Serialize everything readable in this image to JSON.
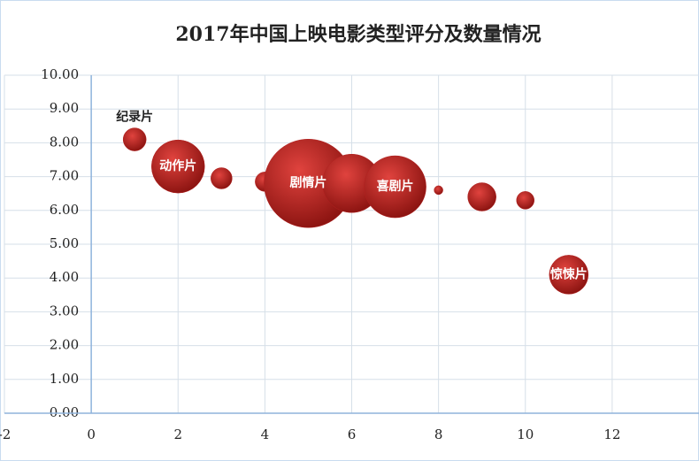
{
  "chart_data": {
    "type": "bubble",
    "title": "2017年中国上映电影类型评分及数量情况",
    "x": [
      1,
      2,
      3,
      4,
      5,
      6,
      7,
      8,
      9,
      10,
      11
    ],
    "y": [
      8.1,
      7.3,
      6.95,
      6.85,
      6.8,
      6.8,
      6.7,
      6.6,
      6.4,
      6.3,
      4.1
    ],
    "sizes": [
      169,
      900,
      144,
      121,
      2500,
      1089,
      1225,
      25,
      256,
      100,
      484
    ],
    "labels": [
      "纪录片",
      "动作片",
      null,
      null,
      "剧情片",
      null,
      "喜剧片",
      null,
      null,
      null,
      "惊悚片"
    ],
    "color": "#b3201f",
    "xlim": [
      -2,
      14
    ],
    "xticks": [
      -2,
      0,
      2,
      4,
      6,
      8,
      10,
      12
    ],
    "ylim": [
      0,
      10
    ],
    "yticks": [
      {
        "value": 0,
        "label": "0.00"
      },
      {
        "value": 1,
        "label": "1.00"
      },
      {
        "value": 2,
        "label": "2.00"
      },
      {
        "value": 3,
        "label": "3.00"
      },
      {
        "value": 4,
        "label": "4.00"
      },
      {
        "value": 5,
        "label": "5.00"
      },
      {
        "value": 6,
        "label": "6.00"
      },
      {
        "value": 7,
        "label": "7.00"
      },
      {
        "value": 8,
        "label": "8.00"
      },
      {
        "value": 9,
        "label": "9.00"
      },
      {
        "value": 10,
        "label": "10.00"
      }
    ],
    "grid": true
  }
}
